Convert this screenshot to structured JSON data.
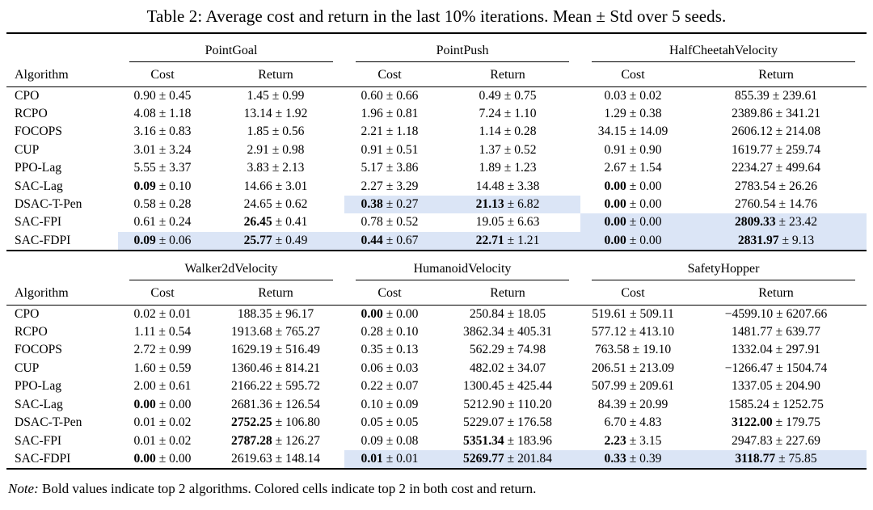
{
  "title": "Table 2: Average cost and return in the last 10% iterations. Mean ± Std over 5 seeds.",
  "note": {
    "label": "Note:",
    "text": " Bold values indicate top 2 algorithms. Colored cells indicate top 2 in both cost and return."
  },
  "colors": {
    "highlight": "#dbe5f6",
    "rule": "#000000",
    "text": "#000000"
  },
  "plus_minus": "±",
  "tables": [
    {
      "groups": [
        "PointGoal",
        "PointPush",
        "HalfCheetahVelocity"
      ],
      "algorithm_header": "Algorithm",
      "sub_headers": [
        "Cost",
        "Return"
      ],
      "rows": [
        {
          "algorithm": "CPO",
          "cells": [
            [
              "0.90",
              "0.45",
              0,
              0
            ],
            [
              "1.45",
              "0.99",
              0,
              0
            ],
            [
              "0.60",
              "0.66",
              0,
              0
            ],
            [
              "0.49",
              "0.75",
              0,
              0
            ],
            [
              "0.03",
              "0.02",
              0,
              0
            ],
            [
              "855.39",
              "239.61",
              0,
              0
            ]
          ]
        },
        {
          "algorithm": "RCPO",
          "cells": [
            [
              "4.08",
              "1.18",
              0,
              0
            ],
            [
              "13.14",
              "1.92",
              0,
              0
            ],
            [
              "1.96",
              "0.81",
              0,
              0
            ],
            [
              "7.24",
              "1.10",
              0,
              0
            ],
            [
              "1.29",
              "0.38",
              0,
              0
            ],
            [
              "2389.86",
              "341.21",
              0,
              0
            ]
          ]
        },
        {
          "algorithm": "FOCOPS",
          "cells": [
            [
              "3.16",
              "0.83",
              0,
              0
            ],
            [
              "1.85",
              "0.56",
              0,
              0
            ],
            [
              "2.21",
              "1.18",
              0,
              0
            ],
            [
              "1.14",
              "0.28",
              0,
              0
            ],
            [
              "34.15",
              "14.09",
              0,
              0
            ],
            [
              "2606.12",
              "214.08",
              0,
              0
            ]
          ]
        },
        {
          "algorithm": "CUP",
          "cells": [
            [
              "3.01",
              "3.24",
              0,
              0
            ],
            [
              "2.91",
              "0.98",
              0,
              0
            ],
            [
              "0.91",
              "0.51",
              0,
              0
            ],
            [
              "1.37",
              "0.52",
              0,
              0
            ],
            [
              "0.91",
              "0.90",
              0,
              0
            ],
            [
              "1619.77",
              "259.74",
              0,
              0
            ]
          ]
        },
        {
          "algorithm": "PPO-Lag",
          "cells": [
            [
              "5.55",
              "3.37",
              0,
              0
            ],
            [
              "3.83",
              "2.13",
              0,
              0
            ],
            [
              "5.17",
              "3.86",
              0,
              0
            ],
            [
              "1.89",
              "1.23",
              0,
              0
            ],
            [
              "2.67",
              "1.54",
              0,
              0
            ],
            [
              "2234.27",
              "499.64",
              0,
              0
            ]
          ]
        },
        {
          "algorithm": "SAC-Lag",
          "cells": [
            [
              "0.09",
              "0.10",
              1,
              0
            ],
            [
              "14.66",
              "3.01",
              0,
              0
            ],
            [
              "2.27",
              "3.29",
              0,
              0
            ],
            [
              "14.48",
              "3.38",
              0,
              0
            ],
            [
              "0.00",
              "0.00",
              1,
              0
            ],
            [
              "2783.54",
              "26.26",
              0,
              0
            ]
          ]
        },
        {
          "algorithm": "DSAC-T-Pen",
          "cells": [
            [
              "0.58",
              "0.28",
              0,
              0
            ],
            [
              "24.65",
              "0.62",
              0,
              0
            ],
            [
              "0.38",
              "0.27",
              1,
              1
            ],
            [
              "21.13",
              "6.82",
              1,
              1
            ],
            [
              "0.00",
              "0.00",
              1,
              0
            ],
            [
              "2760.54",
              "14.76",
              0,
              0
            ]
          ]
        },
        {
          "algorithm": "SAC-FPI",
          "cells": [
            [
              "0.61",
              "0.24",
              0,
              0
            ],
            [
              "26.45",
              "0.41",
              1,
              0
            ],
            [
              "0.78",
              "0.52",
              0,
              0
            ],
            [
              "19.05",
              "6.63",
              0,
              0
            ],
            [
              "0.00",
              "0.00",
              1,
              1
            ],
            [
              "2809.33",
              "23.42",
              1,
              1
            ]
          ]
        },
        {
          "algorithm": "SAC-FDPI",
          "cells": [
            [
              "0.09",
              "0.06",
              1,
              1
            ],
            [
              "25.77",
              "0.49",
              1,
              1
            ],
            [
              "0.44",
              "0.67",
              1,
              1
            ],
            [
              "22.71",
              "1.21",
              1,
              1
            ],
            [
              "0.00",
              "0.00",
              1,
              1
            ],
            [
              "2831.97",
              "9.13",
              1,
              1
            ]
          ]
        }
      ]
    },
    {
      "groups": [
        "Walker2dVelocity",
        "HumanoidVelocity",
        "SafetyHopper"
      ],
      "algorithm_header": "Algorithm",
      "sub_headers": [
        "Cost",
        "Return"
      ],
      "rows": [
        {
          "algorithm": "CPO",
          "cells": [
            [
              "0.02",
              "0.01",
              0,
              0
            ],
            [
              "188.35",
              "96.17",
              0,
              0
            ],
            [
              "0.00",
              "0.00",
              1,
              0
            ],
            [
              "250.84",
              "18.05",
              0,
              0
            ],
            [
              "519.61",
              "509.11",
              0,
              0
            ],
            [
              "−4599.10",
              "6207.66",
              0,
              0
            ]
          ]
        },
        {
          "algorithm": "RCPO",
          "cells": [
            [
              "1.11",
              "0.54",
              0,
              0
            ],
            [
              "1913.68",
              "765.27",
              0,
              0
            ],
            [
              "0.28",
              "0.10",
              0,
              0
            ],
            [
              "3862.34",
              "405.31",
              0,
              0
            ],
            [
              "577.12",
              "413.10",
              0,
              0
            ],
            [
              "1481.77",
              "639.77",
              0,
              0
            ]
          ]
        },
        {
          "algorithm": "FOCOPS",
          "cells": [
            [
              "2.72",
              "0.99",
              0,
              0
            ],
            [
              "1629.19",
              "516.49",
              0,
              0
            ],
            [
              "0.35",
              "0.13",
              0,
              0
            ],
            [
              "562.29",
              "74.98",
              0,
              0
            ],
            [
              "763.58",
              "19.10",
              0,
              0
            ],
            [
              "1332.04",
              "297.91",
              0,
              0
            ]
          ]
        },
        {
          "algorithm": "CUP",
          "cells": [
            [
              "1.60",
              "0.59",
              0,
              0
            ],
            [
              "1360.46",
              "814.21",
              0,
              0
            ],
            [
              "0.06",
              "0.03",
              0,
              0
            ],
            [
              "482.02",
              "34.07",
              0,
              0
            ],
            [
              "206.51",
              "213.09",
              0,
              0
            ],
            [
              "−1266.47",
              "1504.74",
              0,
              0
            ]
          ]
        },
        {
          "algorithm": "PPO-Lag",
          "cells": [
            [
              "2.00",
              "0.61",
              0,
              0
            ],
            [
              "2166.22",
              "595.72",
              0,
              0
            ],
            [
              "0.22",
              "0.07",
              0,
              0
            ],
            [
              "1300.45",
              "425.44",
              0,
              0
            ],
            [
              "507.99",
              "209.61",
              0,
              0
            ],
            [
              "1337.05",
              "204.90",
              0,
              0
            ]
          ]
        },
        {
          "algorithm": "SAC-Lag",
          "cells": [
            [
              "0.00",
              "0.00",
              1,
              0
            ],
            [
              "2681.36",
              "126.54",
              0,
              0
            ],
            [
              "0.10",
              "0.09",
              0,
              0
            ],
            [
              "5212.90",
              "110.20",
              0,
              0
            ],
            [
              "84.39",
              "20.99",
              0,
              0
            ],
            [
              "1585.24",
              "1252.75",
              0,
              0
            ]
          ]
        },
        {
          "algorithm": "DSAC-T-Pen",
          "cells": [
            [
              "0.01",
              "0.02",
              0,
              0
            ],
            [
              "2752.25",
              "106.80",
              1,
              0
            ],
            [
              "0.05",
              "0.05",
              0,
              0
            ],
            [
              "5229.07",
              "176.58",
              0,
              0
            ],
            [
              "6.70",
              "4.83",
              0,
              0
            ],
            [
              "3122.00",
              "179.75",
              1,
              0
            ]
          ]
        },
        {
          "algorithm": "SAC-FPI",
          "cells": [
            [
              "0.01",
              "0.02",
              0,
              0
            ],
            [
              "2787.28",
              "126.27",
              1,
              0
            ],
            [
              "0.09",
              "0.08",
              0,
              0
            ],
            [
              "5351.34",
              "183.96",
              1,
              0
            ],
            [
              "2.23",
              "3.15",
              1,
              0
            ],
            [
              "2947.83",
              "227.69",
              0,
              0
            ]
          ]
        },
        {
          "algorithm": "SAC-FDPI",
          "cells": [
            [
              "0.00",
              "0.00",
              1,
              0
            ],
            [
              "2619.63",
              "148.14",
              0,
              0
            ],
            [
              "0.01",
              "0.01",
              1,
              1
            ],
            [
              "5269.77",
              "201.84",
              1,
              1
            ],
            [
              "0.33",
              "0.39",
              1,
              1
            ],
            [
              "3118.77",
              "75.85",
              1,
              1
            ]
          ]
        }
      ]
    }
  ]
}
